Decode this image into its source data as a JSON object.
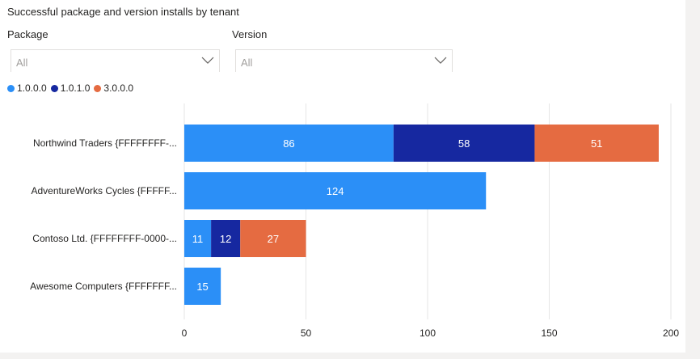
{
  "title": "Successful package and version installs by tenant",
  "slicers": [
    {
      "label": "Package",
      "value": "All"
    },
    {
      "label": "Version",
      "value": "All"
    }
  ],
  "colors": {
    "series": [
      "#2b8ff7",
      "#1628a0",
      "#e56b41"
    ],
    "grid": "#e6e6e6",
    "text": "#252423",
    "label_text": "#ffffff"
  },
  "chart_data": {
    "type": "bar",
    "orientation": "horizontal",
    "stacked": true,
    "categories": [
      "Northwind Traders {FFFFFFFF-...",
      "AdventureWorks Cycles {FFFFF...",
      "Contoso Ltd. {FFFFFFFF-0000-...",
      "Awesome Computers {FFFFFFF..."
    ],
    "series": [
      {
        "name": "1.0.0.0",
        "values": [
          86,
          124,
          11,
          15
        ]
      },
      {
        "name": "1.0.1.0",
        "values": [
          58,
          null,
          12,
          null
        ]
      },
      {
        "name": "3.0.0.0",
        "values": [
          51,
          null,
          27,
          null
        ]
      }
    ],
    "xlim": [
      0,
      200
    ],
    "xticks": [
      0,
      50,
      100,
      150,
      200
    ],
    "grid": true,
    "legend_position": "top-left",
    "data_labels": true
  }
}
